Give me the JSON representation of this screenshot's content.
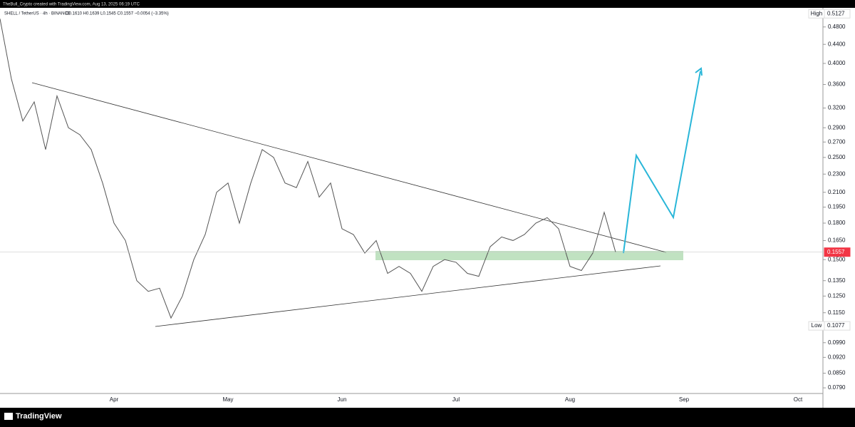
{
  "chart_data": {
    "type": "line",
    "caption": "TheBull_Crypto created with TradingView.com, Aug 13, 2025 06:19 UTC",
    "title": "SHELL / TetherUS · 4h · BINANCE",
    "subtitle": "O0.1610 H0.1639 L0.1545 C0.1557 −0.0054 (−3.35%)",
    "brand": "TradingView",
    "categories": [
      null,
      null,
      null,
      null,
      null,
      null,
      null,
      null,
      null,
      null,
      "Apr",
      null,
      null,
      null,
      null,
      null,
      null,
      null,
      null,
      null,
      "May",
      null,
      null,
      null,
      null,
      null,
      null,
      null,
      null,
      null,
      "Jun",
      null,
      null,
      null,
      null,
      null,
      null,
      null,
      null,
      null,
      "Jul",
      null,
      null,
      null,
      null,
      null,
      null,
      null,
      null,
      null,
      "Aug",
      null,
      null,
      null,
      null,
      null,
      null,
      null,
      null,
      null,
      "Sep",
      null,
      null,
      null,
      null,
      null,
      null,
      null,
      null,
      null,
      "Oct",
      null
    ],
    "series": [
      {
        "color": "#555555",
        "values": [
          0.5,
          0.37,
          0.3,
          0.33,
          0.26,
          0.34,
          0.29,
          0.28,
          0.26,
          0.22,
          0.18,
          0.165,
          0.135,
          0.128,
          0.13,
          0.112,
          0.125,
          0.15,
          0.17,
          0.21,
          0.22,
          0.18,
          0.22,
          0.26,
          0.25,
          0.22,
          0.215,
          0.245,
          0.205,
          0.22,
          0.175,
          0.17,
          0.155,
          0.165,
          0.14,
          0.145,
          0.14,
          0.128,
          0.145,
          0.15,
          0.148,
          0.14,
          0.138,
          0.16,
          0.168,
          0.165,
          0.17,
          0.18,
          0.185,
          0.175,
          0.145,
          0.142,
          0.155,
          0.19,
          0.1557,
          null,
          null,
          null,
          null,
          null,
          null,
          null,
          null,
          null,
          null,
          null,
          null,
          null,
          null,
          null,
          null,
          null
        ]
      }
    ],
    "log_scale": true,
    "ylim": [
      0.0768,
      0.53
    ],
    "yticks": [
      {
        "value": 0.48,
        "label": "0.4800"
      },
      {
        "value": 0.44,
        "label": "0.4400"
      },
      {
        "value": 0.4,
        "label": "0.4000"
      },
      {
        "value": 0.36,
        "label": "0.3600"
      },
      {
        "value": 0.32,
        "label": "0.3200"
      },
      {
        "value": 0.29,
        "label": "0.2900"
      },
      {
        "value": 0.27,
        "label": "0.2700"
      },
      {
        "value": 0.25,
        "label": "0.2500"
      },
      {
        "value": 0.23,
        "label": "0.2300"
      },
      {
        "value": 0.21,
        "label": "0.2100"
      },
      {
        "value": 0.195,
        "label": "0.1950"
      },
      {
        "value": 0.18,
        "label": "0.1800"
      },
      {
        "value": 0.165,
        "label": "0.1650"
      },
      {
        "value": 0.15,
        "label": "0.1500"
      },
      {
        "value": 0.135,
        "label": "0.1350"
      },
      {
        "value": 0.125,
        "label": "0.1250"
      },
      {
        "value": 0.115,
        "label": "0.1150"
      },
      {
        "value": 0.099,
        "label": "0.0990"
      },
      {
        "value": 0.092,
        "label": "0.0920"
      },
      {
        "value": 0.085,
        "label": "0.0850"
      },
      {
        "value": 0.079,
        "label": "0.0790"
      }
    ],
    "badges": [
      {
        "label": "High",
        "value": 0.5127,
        "color": "#ffffff"
      },
      {
        "label": "Low",
        "value": 0.1077,
        "color": "#ffffff"
      },
      {
        "value": 0.1557,
        "color": "#f23645"
      }
    ]
  }
}
